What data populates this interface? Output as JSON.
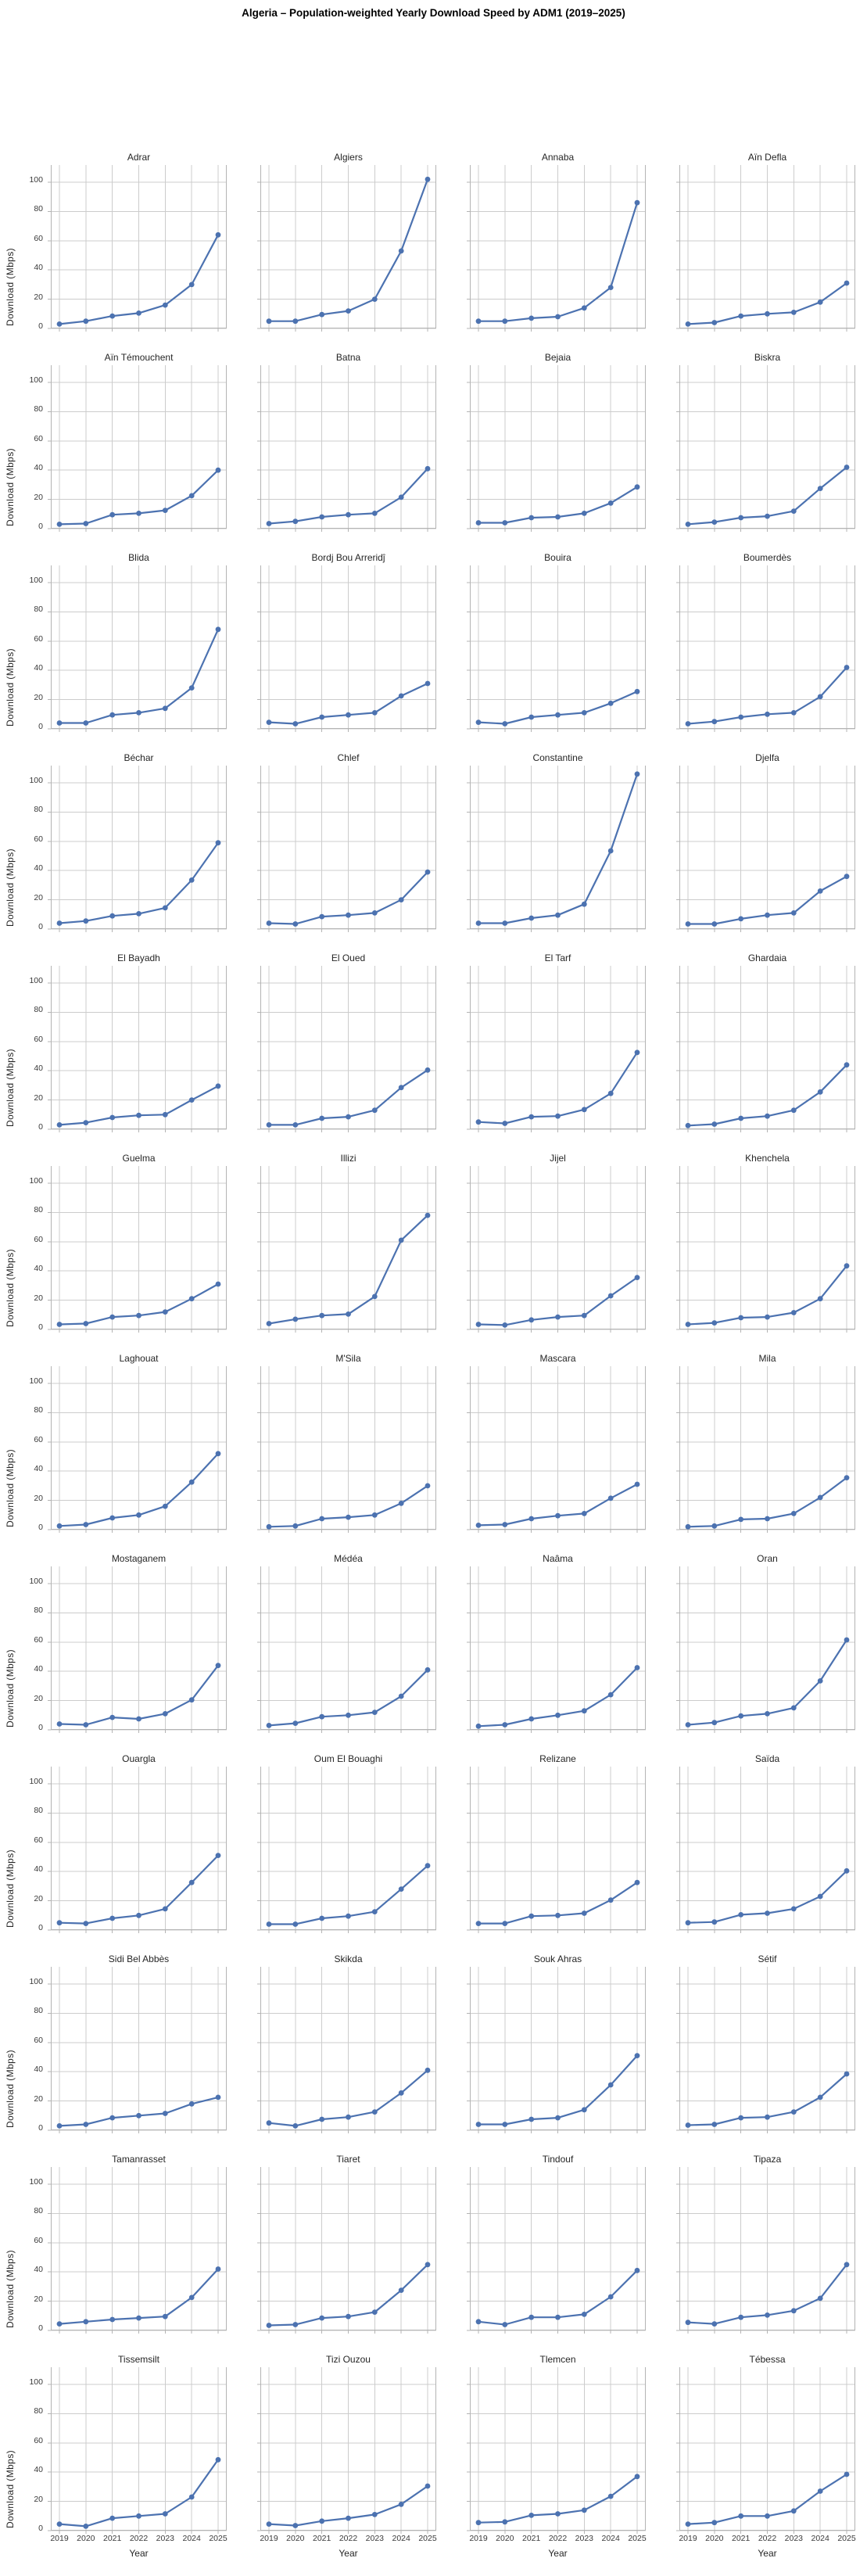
{
  "title": "Algeria – Population-weighted Yearly Download Speed by ADM1 (2019–2025)",
  "chart_data": {
    "type": "line",
    "layout": "small-multiples-grid",
    "grid": {
      "rows": 12,
      "cols": 4
    },
    "x": [
      2019,
      2020,
      2021,
      2022,
      2023,
      2024,
      2025
    ],
    "xlabel": "Year",
    "ylabel": "Download (Mbps)",
    "ylim": [
      0,
      112
    ],
    "yticks": [
      0,
      20,
      40,
      60,
      80,
      100
    ],
    "grid_on": true,
    "legend": "none",
    "line_color": "#4C72B0",
    "marker_color": "#4C72B0",
    "grid_color": "#cccccc",
    "spine_color": "#b4b4b4",
    "subplots": [
      {
        "name": "Adrar",
        "values": [
          3,
          5,
          8.5,
          10.5,
          16,
          30,
          64
        ]
      },
      {
        "name": "Algiers",
        "values": [
          5,
          5,
          9.5,
          12,
          20,
          53,
          102
        ]
      },
      {
        "name": "Annaba",
        "values": [
          5,
          5,
          7,
          8,
          14,
          28,
          86
        ]
      },
      {
        "name": "Aïn Defla",
        "values": [
          3,
          4,
          8.5,
          10,
          11,
          18,
          31
        ]
      },
      {
        "name": "Aïn Témouchent",
        "values": [
          3,
          3.5,
          9.5,
          10.5,
          12.5,
          22.5,
          40
        ]
      },
      {
        "name": "Batna",
        "values": [
          3.5,
          5,
          8,
          9.5,
          10.5,
          21.5,
          41
        ]
      },
      {
        "name": "Bejaia",
        "values": [
          4,
          4,
          7.5,
          8,
          10.5,
          17.5,
          28.5
        ]
      },
      {
        "name": "Biskra",
        "values": [
          3,
          4.5,
          7.5,
          8.5,
          12,
          27.5,
          42
        ]
      },
      {
        "name": "Blida",
        "values": [
          4,
          4,
          9.5,
          11,
          14,
          28,
          68
        ]
      },
      {
        "name": "Bordj Bou Arreridĵ",
        "values": [
          4.5,
          3.5,
          8,
          9.5,
          11,
          22.5,
          31
        ]
      },
      {
        "name": "Bouira",
        "values": [
          4.5,
          3.5,
          8,
          9.5,
          11,
          17.5,
          25.5
        ]
      },
      {
        "name": "Boumerdès",
        "values": [
          3.5,
          5,
          8,
          10,
          11,
          22,
          42
        ]
      },
      {
        "name": "Béchar",
        "values": [
          4,
          5.5,
          9,
          10.5,
          14.5,
          33.5,
          59
        ]
      },
      {
        "name": "Chlef",
        "values": [
          4,
          3.5,
          8.5,
          9.5,
          11,
          20,
          39
        ]
      },
      {
        "name": "Constantine",
        "values": [
          4,
          4,
          7.5,
          9.5,
          17,
          53.5,
          106
        ]
      },
      {
        "name": "Djelfa",
        "values": [
          3.5,
          3.5,
          7,
          9.5,
          11,
          26,
          36
        ]
      },
      {
        "name": "El Bayadh",
        "values": [
          3,
          4.5,
          8,
          9.5,
          10,
          20,
          29.5
        ]
      },
      {
        "name": "El Oued",
        "values": [
          3,
          3,
          7.5,
          8.5,
          13,
          28.5,
          40.5
        ]
      },
      {
        "name": "El Tarf",
        "values": [
          5,
          4,
          8.5,
          9,
          13.5,
          24.5,
          52.5
        ]
      },
      {
        "name": "Ghardaia",
        "values": [
          2.5,
          3.5,
          7.5,
          9,
          13,
          25.5,
          44
        ]
      },
      {
        "name": "Guelma",
        "values": [
          3.5,
          4,
          8.5,
          9.5,
          12,
          21,
          31
        ]
      },
      {
        "name": "Illizi",
        "values": [
          4,
          7,
          9.5,
          10.5,
          22.5,
          61,
          78
        ]
      },
      {
        "name": "Jijel",
        "values": [
          3.5,
          3,
          6.5,
          8.5,
          9.5,
          23,
          35.5
        ]
      },
      {
        "name": "Khenchela",
        "values": [
          3.5,
          4.5,
          8,
          8.5,
          11.5,
          21,
          43.5
        ]
      },
      {
        "name": "Laghouat",
        "values": [
          2.5,
          3.5,
          8,
          10,
          16,
          32.5,
          52
        ]
      },
      {
        "name": "M'Sila",
        "values": [
          2,
          2.5,
          7.5,
          8.5,
          10,
          18,
          30
        ]
      },
      {
        "name": "Mascara",
        "values": [
          3,
          3.5,
          7.5,
          9.5,
          11,
          21.5,
          31
        ]
      },
      {
        "name": "Mila",
        "values": [
          2,
          2.5,
          7,
          7.5,
          11,
          22,
          35.5
        ]
      },
      {
        "name": "Mostaganem",
        "values": [
          4,
          3.5,
          8.5,
          7.5,
          11,
          20.5,
          44
        ]
      },
      {
        "name": "Médéa",
        "values": [
          3,
          4.5,
          9,
          10,
          12,
          23,
          41
        ]
      },
      {
        "name": "Naâma",
        "values": [
          2.5,
          3.5,
          7.5,
          10,
          13,
          24,
          42.5
        ]
      },
      {
        "name": "Oran",
        "values": [
          3.5,
          5,
          9.5,
          11,
          15,
          33.5,
          61.5
        ]
      },
      {
        "name": "Ouargla",
        "values": [
          5,
          4.5,
          8,
          10,
          14.5,
          32.5,
          51
        ]
      },
      {
        "name": "Oum El Bouaghi",
        "values": [
          4,
          4,
          8,
          9.5,
          12.5,
          28,
          44
        ]
      },
      {
        "name": "Relizane",
        "values": [
          4.5,
          4.5,
          9.5,
          10,
          11.5,
          20.5,
          32.5
        ]
      },
      {
        "name": "Saïda",
        "values": [
          5,
          5.5,
          10.5,
          11.5,
          14.5,
          23,
          40.5
        ]
      },
      {
        "name": "Sidi Bel Abbès",
        "values": [
          3,
          4,
          8.5,
          10,
          11.5,
          18,
          22.5
        ]
      },
      {
        "name": "Skikda",
        "values": [
          5,
          3,
          7.5,
          9,
          12.5,
          25.5,
          41
        ]
      },
      {
        "name": "Souk Ahras",
        "values": [
          4,
          4,
          7.5,
          8.5,
          14,
          31,
          51
        ]
      },
      {
        "name": "Sétif",
        "values": [
          3.5,
          4,
          8.5,
          9,
          12.5,
          22.5,
          38.5
        ]
      },
      {
        "name": "Tamanrasset",
        "values": [
          4.5,
          6,
          7.5,
          8.5,
          9.5,
          22.5,
          42
        ]
      },
      {
        "name": "Tiaret",
        "values": [
          3.5,
          4,
          8.5,
          9.5,
          12.5,
          27.5,
          45
        ]
      },
      {
        "name": "Tindouf",
        "values": [
          6,
          4,
          9,
          9,
          11,
          23,
          41
        ]
      },
      {
        "name": "Tipaza",
        "values": [
          5.5,
          4.5,
          9,
          10.5,
          13.5,
          22,
          45
        ]
      },
      {
        "name": "Tissemsilt",
        "values": [
          4.5,
          3,
          8.5,
          10,
          11.5,
          23,
          48.5
        ]
      },
      {
        "name": "Tizi Ouzou",
        "values": [
          4.5,
          3.5,
          6.5,
          8.5,
          11,
          18,
          30.5
        ]
      },
      {
        "name": "Tlemcen",
        "values": [
          5.5,
          6,
          10.5,
          11.5,
          14,
          23.5,
          37
        ]
      },
      {
        "name": "Tébessa",
        "values": [
          4.5,
          5.5,
          10,
          10,
          13.5,
          27,
          38.5
        ]
      }
    ]
  }
}
